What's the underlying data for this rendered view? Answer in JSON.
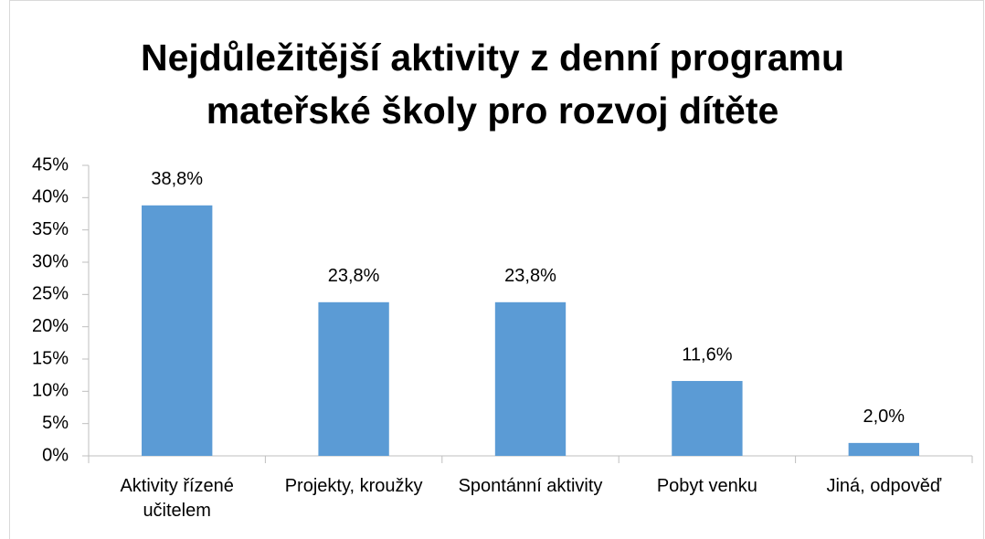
{
  "chart_data": {
    "type": "bar",
    "title": "Nejdůležitější aktivity z denní programu mateřské školy pro rozvoj dítěte",
    "categories": [
      "Aktivity řízené učitelem",
      "Projekty, kroužky",
      "Spontánní aktivity",
      "Pobyt venku",
      "Jiná, odpověď"
    ],
    "values": [
      38.8,
      23.8,
      23.8,
      11.6,
      2.0
    ],
    "value_labels": [
      "38,8%",
      "23,8%",
      "23,8%",
      "11,6%",
      "2,0%"
    ],
    "color": "#5b9bd5",
    "ylim": [
      0,
      45
    ],
    "yticks": [
      {
        "value": 0,
        "label": "0%"
      },
      {
        "value": 5,
        "label": "5%"
      },
      {
        "value": 10,
        "label": "10%"
      },
      {
        "value": 15,
        "label": "15%"
      },
      {
        "value": 20,
        "label": "20%"
      },
      {
        "value": 25,
        "label": "25%"
      },
      {
        "value": 30,
        "label": "30%"
      },
      {
        "value": 35,
        "label": "35%"
      },
      {
        "value": 40,
        "label": "40%"
      },
      {
        "value": 45,
        "label": "45%"
      }
    ],
    "grid": false
  }
}
